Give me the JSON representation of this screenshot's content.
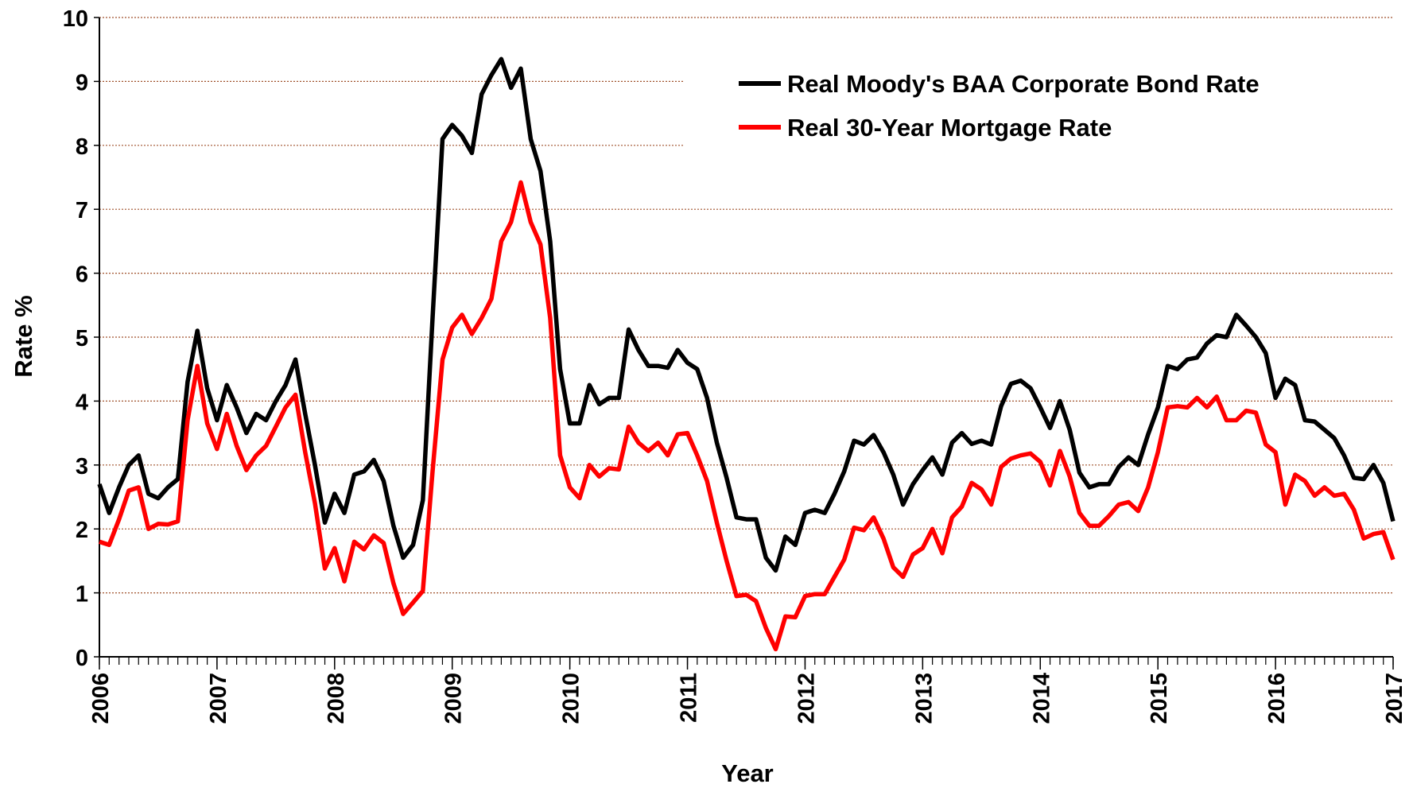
{
  "chart_data": {
    "type": "line",
    "xlabel": "Year",
    "ylabel": "Rate %",
    "x": [
      2006,
      2006.083,
      2006.167,
      2006.25,
      2006.333,
      2006.417,
      2006.5,
      2006.583,
      2006.667,
      2006.75,
      2006.833,
      2006.917,
      2007,
      2007.083,
      2007.167,
      2007.25,
      2007.333,
      2007.417,
      2007.5,
      2007.583,
      2007.667,
      2007.75,
      2007.833,
      2007.917,
      2008,
      2008.083,
      2008.167,
      2008.25,
      2008.333,
      2008.417,
      2008.5,
      2008.583,
      2008.667,
      2008.75,
      2008.833,
      2008.917,
      2009,
      2009.083,
      2009.167,
      2009.25,
      2009.333,
      2009.417,
      2009.5,
      2009.583,
      2009.667,
      2009.75,
      2009.833,
      2009.917,
      2010,
      2010.083,
      2010.167,
      2010.25,
      2010.333,
      2010.417,
      2010.5,
      2010.583,
      2010.667,
      2010.75,
      2010.833,
      2010.917,
      2011,
      2011.083,
      2011.167,
      2011.25,
      2011.333,
      2011.417,
      2011.5,
      2011.583,
      2011.667,
      2011.75,
      2011.833,
      2011.917,
      2012,
      2012.083,
      2012.167,
      2012.25,
      2012.333,
      2012.417,
      2012.5,
      2012.583,
      2012.667,
      2012.75,
      2012.833,
      2012.917,
      2013,
      2013.083,
      2013.167,
      2013.25,
      2013.333,
      2013.417,
      2013.5,
      2013.583,
      2013.667,
      2013.75,
      2013.833,
      2013.917,
      2014,
      2014.083,
      2014.167,
      2014.25,
      2014.333,
      2014.417,
      2014.5,
      2014.583,
      2014.667,
      2014.75,
      2014.833,
      2014.917,
      2015,
      2015.083,
      2015.167,
      2015.25,
      2015.333,
      2015.417,
      2015.5,
      2015.583,
      2015.667,
      2015.75,
      2015.833,
      2015.917,
      2016,
      2016.083,
      2016.167,
      2016.25,
      2016.333,
      2016.417,
      2016.5,
      2016.583,
      2016.667,
      2016.75,
      2016.833,
      2016.917,
      2017
    ],
    "series": [
      {
        "name": "Real Moody's BAA Corporate Bond Rate",
        "color": "#000000",
        "values": [
          2.7,
          2.25,
          2.65,
          3.0,
          3.15,
          2.55,
          2.48,
          2.65,
          2.78,
          4.3,
          5.1,
          4.2,
          3.7,
          4.25,
          3.9,
          3.5,
          3.8,
          3.7,
          4.0,
          4.25,
          4.65,
          3.8,
          3.0,
          2.1,
          2.55,
          2.25,
          2.85,
          2.9,
          3.08,
          2.75,
          2.05,
          1.55,
          1.75,
          2.45,
          5.3,
          8.1,
          8.32,
          8.15,
          7.88,
          8.8,
          9.1,
          9.35,
          8.9,
          9.2,
          8.1,
          7.6,
          6.5,
          4.5,
          3.65,
          3.65,
          4.25,
          3.95,
          4.05,
          4.05,
          5.12,
          4.8,
          4.55,
          4.55,
          4.52,
          4.8,
          4.6,
          4.5,
          4.05,
          3.35,
          2.8,
          2.18,
          2.15,
          2.15,
          1.55,
          1.35,
          1.88,
          1.75,
          2.25,
          2.3,
          2.25,
          2.55,
          2.9,
          3.38,
          3.32,
          3.47,
          3.2,
          2.85,
          2.38,
          2.7,
          2.92,
          3.12,
          2.85,
          3.35,
          3.5,
          3.33,
          3.38,
          3.32,
          3.92,
          4.27,
          4.32,
          4.2,
          3.9,
          3.58,
          4.0,
          3.55,
          2.88,
          2.65,
          2.7,
          2.7,
          2.97,
          3.12,
          3.0,
          3.48,
          3.9,
          4.55,
          4.5,
          4.65,
          4.68,
          4.9,
          5.03,
          5.0,
          5.35,
          5.18,
          5.0,
          4.75,
          4.05,
          4.35,
          4.25,
          3.7,
          3.68,
          3.55,
          3.42,
          3.15,
          2.8,
          2.78,
          3.0,
          2.72,
          2.12
        ]
      },
      {
        "name": "Real 30-Year Mortgage Rate",
        "color": "#ff0000",
        "values": [
          1.8,
          1.75,
          2.15,
          2.6,
          2.65,
          2.0,
          2.08,
          2.07,
          2.12,
          3.7,
          4.55,
          3.65,
          3.25,
          3.8,
          3.3,
          2.92,
          3.15,
          3.3,
          3.6,
          3.9,
          4.1,
          3.2,
          2.4,
          1.38,
          1.7,
          1.18,
          1.8,
          1.68,
          1.9,
          1.78,
          1.15,
          0.67,
          0.85,
          1.03,
          2.9,
          4.65,
          5.15,
          5.35,
          5.05,
          5.3,
          5.6,
          6.5,
          6.8,
          7.42,
          6.8,
          6.45,
          5.3,
          3.15,
          2.65,
          2.48,
          3.0,
          2.82,
          2.95,
          2.93,
          3.6,
          3.35,
          3.22,
          3.35,
          3.15,
          3.48,
          3.5,
          3.15,
          2.75,
          2.1,
          1.5,
          0.95,
          0.97,
          0.87,
          0.45,
          0.12,
          0.63,
          0.62,
          0.95,
          0.98,
          0.98,
          1.25,
          1.52,
          2.02,
          1.98,
          2.18,
          1.85,
          1.4,
          1.25,
          1.6,
          1.7,
          2.0,
          1.62,
          2.18,
          2.35,
          2.72,
          2.62,
          2.38,
          2.97,
          3.1,
          3.15,
          3.18,
          3.05,
          2.68,
          3.22,
          2.82,
          2.25,
          2.05,
          2.05,
          2.2,
          2.38,
          2.42,
          2.28,
          2.65,
          3.2,
          3.9,
          3.92,
          3.9,
          4.05,
          3.9,
          4.07,
          3.7,
          3.7,
          3.85,
          3.82,
          3.32,
          3.2,
          2.38,
          2.85,
          2.75,
          2.52,
          2.65,
          2.52,
          2.55,
          2.3,
          1.85,
          1.92,
          1.95,
          1.52
        ]
      }
    ],
    "xlim": [
      2006,
      2017
    ],
    "xticks": [
      2006,
      2007,
      2008,
      2009,
      2010,
      2011,
      2012,
      2013,
      2014,
      2015,
      2016,
      2017
    ],
    "ylim": [
      0,
      10
    ],
    "yticks": [
      0,
      1,
      2,
      3,
      4,
      5,
      6,
      7,
      8,
      9,
      10
    ],
    "grid": true,
    "legend": "upper right"
  }
}
